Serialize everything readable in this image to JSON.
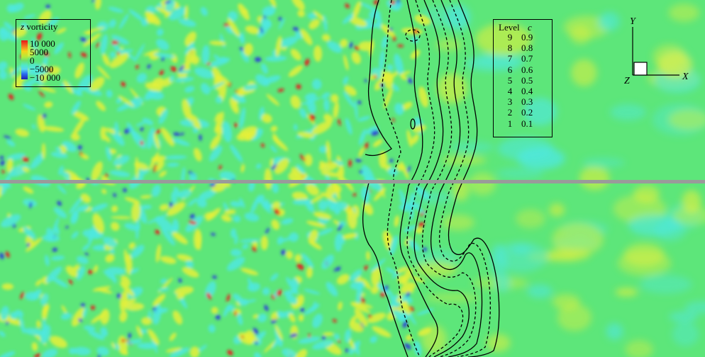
{
  "vorticity_legend": {
    "title_var": "z",
    "title_rest": " vorticity",
    "ticks": [
      "10 000",
      "5000",
      "0",
      "−5000",
      "−10 000"
    ]
  },
  "level_legend": {
    "header_level": "Level",
    "header_c": "c",
    "rows": [
      {
        "level": "9",
        "c": "0.9"
      },
      {
        "level": "8",
        "c": "0.8"
      },
      {
        "level": "7",
        "c": "0.7"
      },
      {
        "level": "6",
        "c": "0.6"
      },
      {
        "level": "5",
        "c": "0.5"
      },
      {
        "level": "4",
        "c": "0.4"
      },
      {
        "level": "3",
        "c": "0.3"
      },
      {
        "level": "2",
        "c": "0.2"
      },
      {
        "level": "1",
        "c": "0.1"
      }
    ]
  },
  "axes": {
    "x": "X",
    "y": "Y",
    "z": "Z"
  },
  "colors": {
    "background_green": "#5de67a",
    "cyan": "#4fe8e0",
    "yellow": "#e6f03a",
    "red": "#e8141a",
    "blue": "#2a3ad8",
    "divider": "#9a9a9a"
  }
}
